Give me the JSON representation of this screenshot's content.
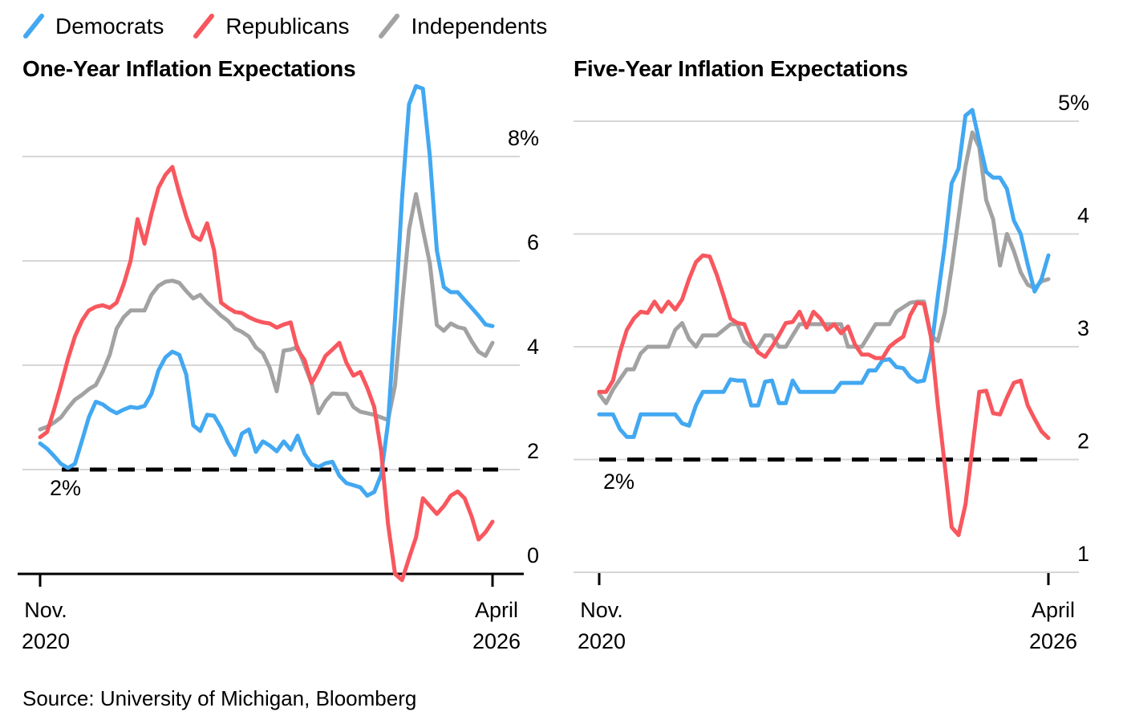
{
  "legend": {
    "items": [
      {
        "label": "Democrats",
        "color": "#42A8F1"
      },
      {
        "label": "Republicans",
        "color": "#F8575E"
      },
      {
        "label": "Independents",
        "color": "#A2A2A2"
      }
    ]
  },
  "source": "Source: University of Michigan, Bloomberg",
  "colors": {
    "democrats": "#42A8F1",
    "republicans": "#F8575E",
    "independents": "#A2A2A2",
    "gridline": "#D6D6D6",
    "benchmark_dash": "#000000",
    "axis": "#000000",
    "text": "#000000"
  },
  "chart_data": [
    {
      "type": "line",
      "title": "One-Year Inflation Expectations",
      "x_unit": "month",
      "x_start": "Nov. 2020",
      "x_end": "April 2026",
      "n_points": 66,
      "ylim": [
        -0.3,
        9.6
      ],
      "grid": true,
      "legend_position": "top-left",
      "y_ticks": [
        {
          "value": 8,
          "label": "8%"
        },
        {
          "value": 6,
          "label": "6"
        },
        {
          "value": 4,
          "label": "4"
        },
        {
          "value": 2,
          "label": "2"
        },
        {
          "value": 0,
          "label": "0",
          "grid": false
        }
      ],
      "x_tick_labels": [
        [
          "Nov.",
          "2020"
        ],
        [
          "April",
          "2026"
        ]
      ],
      "benchmark": {
        "value": 2,
        "label": "2%",
        "style": "dashed-black"
      },
      "series": [
        {
          "name": "Democrats",
          "color": "#42A8F1",
          "values": [
            2.5,
            2.4,
            2.26,
            2.11,
            2.03,
            2.11,
            2.55,
            3.0,
            3.3,
            3.25,
            3.15,
            3.08,
            3.15,
            3.2,
            3.18,
            3.22,
            3.45,
            3.9,
            4.15,
            4.26,
            4.2,
            3.82,
            2.85,
            2.74,
            3.05,
            3.03,
            2.8,
            2.51,
            2.28,
            2.69,
            2.77,
            2.34,
            2.54,
            2.46,
            2.35,
            2.54,
            2.38,
            2.65,
            2.3,
            2.1,
            2.05,
            2.12,
            2.15,
            1.88,
            1.74,
            1.7,
            1.66,
            1.5,
            1.57,
            1.9,
            2.9,
            4.9,
            7.2,
            9.0,
            9.35,
            9.3,
            8.0,
            6.2,
            5.5,
            5.4,
            5.4,
            5.25,
            5.1,
            4.95,
            4.78,
            4.75
          ]
        },
        {
          "name": "Republicans",
          "color": "#F8575E",
          "values": [
            2.62,
            2.72,
            3.15,
            3.62,
            4.12,
            4.55,
            4.85,
            5.05,
            5.12,
            5.15,
            5.1,
            5.2,
            5.55,
            6.0,
            6.8,
            6.33,
            6.9,
            7.4,
            7.65,
            7.8,
            7.3,
            6.85,
            6.48,
            6.4,
            6.72,
            6.2,
            5.2,
            5.1,
            5.02,
            5.0,
            4.92,
            4.86,
            4.82,
            4.8,
            4.72,
            4.78,
            4.82,
            4.3,
            4.1,
            3.66,
            3.9,
            4.18,
            4.3,
            4.43,
            4.05,
            3.8,
            3.87,
            3.57,
            3.2,
            2.35,
            0.95,
            0.0,
            -0.12,
            0.3,
            0.7,
            1.45,
            1.3,
            1.15,
            1.3,
            1.5,
            1.58,
            1.45,
            1.1,
            0.66,
            0.8,
            1.0
          ]
        },
        {
          "name": "Independents",
          "color": "#A2A2A2",
          "values": [
            2.77,
            2.82,
            2.9,
            3.0,
            3.18,
            3.34,
            3.43,
            3.54,
            3.62,
            3.88,
            4.2,
            4.7,
            4.92,
            5.05,
            5.05,
            5.05,
            5.35,
            5.52,
            5.6,
            5.62,
            5.58,
            5.42,
            5.28,
            5.35,
            5.2,
            5.08,
            4.95,
            4.85,
            4.7,
            4.64,
            4.55,
            4.34,
            4.23,
            3.95,
            3.5,
            4.28,
            4.3,
            4.35,
            4.0,
            3.66,
            3.08,
            3.31,
            3.46,
            3.45,
            3.45,
            3.2,
            3.11,
            3.08,
            3.05,
            3.0,
            2.95,
            3.62,
            5.15,
            6.6,
            7.28,
            6.6,
            5.95,
            4.77,
            4.66,
            4.8,
            4.73,
            4.7,
            4.46,
            4.26,
            4.18,
            4.43
          ]
        }
      ]
    },
    {
      "type": "line",
      "title": "Five-Year Inflation Expectations",
      "x_unit": "month",
      "x_start": "Nov. 2020",
      "x_end": "April 2026",
      "n_points": 66,
      "ylim": [
        1.0,
        5.3
      ],
      "grid": true,
      "legend_position": "top-left",
      "y_ticks": [
        {
          "value": 5,
          "label": "5%"
        },
        {
          "value": 4,
          "label": "4"
        },
        {
          "value": 3,
          "label": "3"
        },
        {
          "value": 2,
          "label": "2"
        },
        {
          "value": 1,
          "label": "1"
        }
      ],
      "x_tick_labels": [
        [
          "Nov.",
          "2020"
        ],
        [
          "April",
          "2026"
        ]
      ],
      "benchmark": {
        "value": 2,
        "label": "2%",
        "style": "dashed-black"
      },
      "series": [
        {
          "name": "Democrats",
          "color": "#42A8F1",
          "values": [
            2.4,
            2.4,
            2.4,
            2.27,
            2.2,
            2.2,
            2.4,
            2.4,
            2.4,
            2.4,
            2.4,
            2.4,
            2.32,
            2.3,
            2.48,
            2.6,
            2.6,
            2.6,
            2.6,
            2.71,
            2.7,
            2.7,
            2.48,
            2.48,
            2.69,
            2.7,
            2.5,
            2.5,
            2.7,
            2.6,
            2.6,
            2.6,
            2.6,
            2.6,
            2.6,
            2.68,
            2.68,
            2.68,
            2.68,
            2.79,
            2.79,
            2.88,
            2.89,
            2.82,
            2.81,
            2.73,
            2.69,
            2.7,
            2.95,
            3.45,
            3.9,
            4.45,
            4.58,
            5.05,
            5.1,
            4.82,
            4.55,
            4.5,
            4.5,
            4.4,
            4.12,
            4.0,
            3.73,
            3.49,
            3.6,
            3.81
          ]
        },
        {
          "name": "Republicans",
          "color": "#F8575E",
          "values": [
            2.6,
            2.6,
            2.7,
            2.95,
            3.15,
            3.25,
            3.31,
            3.3,
            3.4,
            3.31,
            3.4,
            3.33,
            3.42,
            3.6,
            3.75,
            3.81,
            3.8,
            3.64,
            3.45,
            3.25,
            3.21,
            3.2,
            3.05,
            2.95,
            2.91,
            3.0,
            3.1,
            3.21,
            3.22,
            3.31,
            3.17,
            3.31,
            3.25,
            3.15,
            3.2,
            3.12,
            3.18,
            3.02,
            2.93,
            2.93,
            2.9,
            2.9,
            3.0,
            3.05,
            3.09,
            3.28,
            3.39,
            3.38,
            3.09,
            2.48,
            1.95,
            1.4,
            1.33,
            1.6,
            2.1,
            2.6,
            2.61,
            2.41,
            2.4,
            2.55,
            2.68,
            2.7,
            2.48,
            2.36,
            2.25,
            2.19
          ]
        },
        {
          "name": "Independents",
          "color": "#A2A2A2",
          "values": [
            2.58,
            2.5,
            2.62,
            2.71,
            2.8,
            2.8,
            2.94,
            3.0,
            3.0,
            3.0,
            3.0,
            3.15,
            3.21,
            3.07,
            3.0,
            3.1,
            3.1,
            3.1,
            3.15,
            3.2,
            3.2,
            3.05,
            3.0,
            3.0,
            3.1,
            3.1,
            3.0,
            3.0,
            3.1,
            3.2,
            3.2,
            3.2,
            3.2,
            3.2,
            3.2,
            3.2,
            3.0,
            3.0,
            3.0,
            3.1,
            3.2,
            3.2,
            3.2,
            3.31,
            3.35,
            3.39,
            3.4,
            3.4,
            3.1,
            3.05,
            3.3,
            3.7,
            4.15,
            4.6,
            4.9,
            4.77,
            4.3,
            4.13,
            3.72,
            4.0,
            3.85,
            3.66,
            3.55,
            3.52,
            3.58,
            3.6
          ]
        }
      ]
    }
  ]
}
